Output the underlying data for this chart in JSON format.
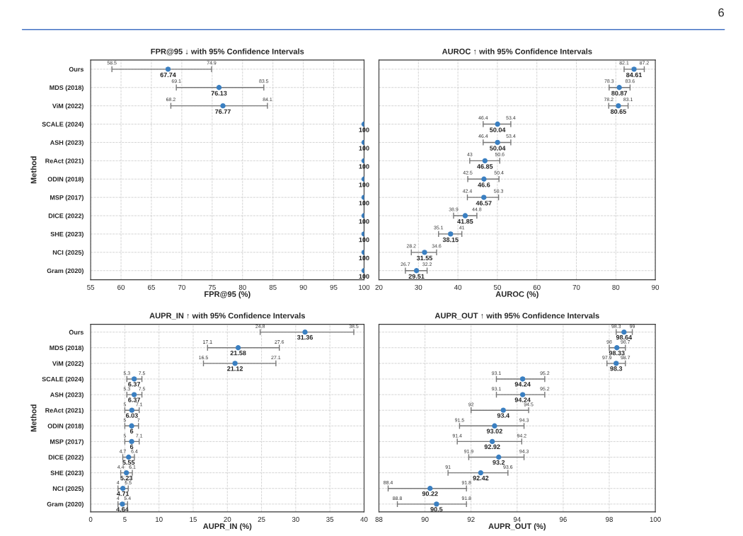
{
  "chart_data": [
    {
      "type": "scatter",
      "orientation": "horizontal",
      "title": "FPR@95 ↓ with 95% Confidence Intervals",
      "xlabel": "FPR@95 (%)",
      "ylabel": "Method",
      "categories": [
        "Ours",
        "MDS (2018)",
        "ViM (2022)",
        "SCALE (2024)",
        "ASH (2023)",
        "ReAct (2021)",
        "ODIN (2018)",
        "MSP (2017)",
        "DICE (2022)",
        "SHE (2023)",
        "NCI (2025)",
        "Gram (2020)"
      ],
      "values": [
        67.74,
        76.13,
        76.77,
        100,
        100,
        100,
        100,
        100,
        100,
        100,
        100,
        100
      ],
      "errors": [
        [
          58.5,
          74.9
        ],
        [
          69.1,
          83.5
        ],
        [
          68.2,
          84.1
        ],
        null,
        null,
        null,
        null,
        null,
        null,
        null,
        null,
        null
      ],
      "color": "#3a7fc1",
      "marker": "circle",
      "data_labels": true,
      "grid": true,
      "xlim": [
        55,
        100
      ],
      "xticks": [
        55,
        60,
        65,
        70,
        75,
        80,
        85,
        90,
        95,
        100
      ],
      "annotations": [
        "6",
        {
          "text": "58.5",
          "x": 58.5,
          "y": "Ours"
        },
        {
          "text": "74.9",
          "x": 74.9,
          "y": "Ours"
        },
        {
          "text": "69.1",
          "x": 69.1,
          "y": "MDS (2018)"
        },
        {
          "text": "83.5",
          "x": 83.5,
          "y": "MDS (2018)"
        },
        {
          "text": "68.2",
          "x": 68.2,
          "y": "ViM (2022)"
        },
        {
          "text": "84.1",
          "x": 84.1,
          "y": "ViM (2022)"
        }
      ]
    },
    {
      "type": "scatter",
      "orientation": "horizontal",
      "title": "AUROC ↑ with 95% Confidence Intervals",
      "xlabel": "AUROC (%)",
      "categories": [
        "Ours",
        "MDS (2018)",
        "ViM (2022)",
        "SCALE (2024)",
        "ASH (2023)",
        "ReAct (2021)",
        "ODIN (2018)",
        "MSP (2017)",
        "DICE (2022)",
        "SHE (2023)",
        "NCI (2025)",
        "Gram (2020)"
      ],
      "values": [
        84.61,
        80.87,
        80.65,
        50.04,
        50.04,
        46.85,
        46.6,
        46.57,
        41.85,
        38.15,
        31.55,
        29.51
      ],
      "errors": [
        [
          82.1,
          87.2
        ],
        [
          78.3,
          83.6
        ],
        [
          78.2,
          83.1
        ],
        [
          46.4,
          53.4
        ],
        [
          46.4,
          53.4
        ],
        [
          43,
          50.6
        ],
        [
          42.5,
          50.4
        ],
        [
          42.4,
          50.3
        ],
        [
          38.9,
          44.8
        ],
        [
          35.1,
          41
        ],
        [
          28.2,
          34.6
        ],
        [
          26.7,
          32.2
        ]
      ],
      "color": "#3a7fc1",
      "marker": "circle",
      "data_labels": true,
      "grid": true,
      "tick_labels": "x",
      "xlim": [
        20,
        90
      ],
      "xticks": [
        20,
        30,
        40,
        50,
        60,
        70,
        80,
        90
      ],
      "annotations": [
        {
          "text": "82.1",
          "x": 82.1,
          "y": "Ours"
        },
        {
          "text": "87.2",
          "x": 87.2,
          "y": "Ours"
        },
        {
          "text": "78.3",
          "x": 78.3,
          "y": "MDS (2018)"
        },
        {
          "text": "83.6",
          "x": 83.6,
          "y": "MDS (2018)"
        },
        {
          "text": "78.2",
          "x": 78.2,
          "y": "ViM (2022)"
        },
        {
          "text": "83.1",
          "x": 83.1,
          "y": "ViM (2022)"
        },
        {
          "text": "46.4",
          "x": 46.4,
          "y": "SCALE (2024)"
        },
        {
          "text": "53.4",
          "x": 53.4,
          "y": "SCALE (2024)"
        },
        {
          "text": "46.4",
          "x": 46.4,
          "y": "ASH (2023)"
        },
        {
          "text": "53.4",
          "x": 53.4,
          "y": "ASH (2023)"
        },
        {
          "text": "43",
          "x": 43,
          "y": "ReAct (2021)"
        },
        {
          "text": "50.6",
          "x": 50.6,
          "y": "ReAct (2021)"
        },
        {
          "text": "42.5",
          "x": 42.5,
          "y": "ODIN (2018)"
        },
        {
          "text": "50.4",
          "x": 50.4,
          "y": "ODIN (2018)"
        },
        {
          "text": "42.4",
          "x": 42.4,
          "y": "MSP (2017)"
        },
        {
          "text": "50.3",
          "x": 50.3,
          "y": "MSP (2017)"
        },
        {
          "text": "38.9",
          "x": 38.9,
          "y": "DICE (2022)"
        },
        {
          "text": "44.8",
          "x": 44.8,
          "y": "DICE (2022)"
        },
        {
          "text": "35.1",
          "x": 35.1,
          "y": "SHE (2023)"
        },
        {
          "text": "41",
          "x": 41,
          "y": "SHE (2023)"
        },
        {
          "text": "28.2",
          "x": 28.2,
          "y": "NCI (2025)"
        },
        {
          "text": "34.6",
          "x": 34.6,
          "y": "NCI (2025)"
        },
        {
          "text": "26.7",
          "x": 26.7,
          "y": "Gram (2020)"
        },
        {
          "text": "32.2",
          "x": 32.2,
          "y": "Gram (2020)"
        }
      ]
    },
    {
      "type": "scatter",
      "orientation": "horizontal",
      "title": "AUPR_IN ↑ with 95% Confidence Intervals",
      "xlabel": "AUPR_IN (%)",
      "ylabel": "Method",
      "categories": [
        "Ours",
        "MDS (2018)",
        "ViM (2022)",
        "SCALE (2024)",
        "ASH (2023)",
        "ReAct (2021)",
        "ODIN (2018)",
        "MSP (2017)",
        "DICE (2022)",
        "SHE (2023)",
        "NCI (2025)",
        "Gram (2020)"
      ],
      "values": [
        31.36,
        21.58,
        21.12,
        6.37,
        6.37,
        6.03,
        6,
        6,
        5.55,
        5.23,
        4.71,
        4.64
      ],
      "errors": [
        [
          24.8,
          38.5
        ],
        [
          17.1,
          27.6
        ],
        [
          16.5,
          27.1
        ],
        [
          5.3,
          7.5
        ],
        [
          5.3,
          7.5
        ],
        [
          5,
          7.1
        ],
        [
          5,
          7
        ],
        [
          5,
          7.1
        ],
        [
          4.7,
          6.4
        ],
        [
          4.4,
          6.1
        ],
        [
          4,
          5.5
        ],
        [
          4,
          5.4
        ]
      ],
      "color": "#3a7fc1",
      "marker": "circle",
      "data_labels": true,
      "grid": true,
      "xlim": [
        0,
        40
      ],
      "xticks": [
        0,
        5,
        10,
        15,
        20,
        25,
        30,
        35,
        40
      ],
      "annotations": [
        {
          "text": "24.8",
          "x": 24.8,
          "y": "Ours"
        },
        {
          "text": "38.5",
          "x": 38.5,
          "y": "Ours"
        },
        {
          "text": "17.1",
          "x": 17.1,
          "y": "MDS (2018)"
        },
        {
          "text": "27.6",
          "x": 27.6,
          "y": "MDS (2018)"
        },
        {
          "text": "16.5",
          "x": 16.5,
          "y": "ViM (2022)"
        },
        {
          "text": "27.1",
          "x": 27.1,
          "y": "ViM (2022)"
        },
        {
          "text": "5.3",
          "x": 5.3,
          "y": "SCALE (2024)"
        },
        {
          "text": "7.5",
          "x": 7.5,
          "y": "SCALE (2024)"
        },
        {
          "text": "5.3",
          "x": 5.3,
          "y": "ASH (2023)"
        },
        {
          "text": "7.5",
          "x": 7.5,
          "y": "ASH (2023)"
        },
        {
          "text": "5",
          "x": 5,
          "y": "ReAct (2021)"
        },
        {
          "text": "7.1",
          "x": 7.1,
          "y": "ReAct (2021)"
        },
        {
          "text": "5",
          "x": 5,
          "y": "ODIN (2018)"
        },
        {
          "text": "7",
          "x": 7,
          "y": "ODIN (2018)"
        },
        {
          "text": "5",
          "x": 5,
          "y": "MSP (2017)"
        },
        {
          "text": "7.1",
          "x": 7.1,
          "y": "MSP (2017)"
        },
        {
          "text": "4.7",
          "x": 4.7,
          "y": "DICE (2022)"
        },
        {
          "text": "6.4",
          "x": 6.4,
          "y": "DICE (2022)"
        },
        {
          "text": "4.4",
          "x": 4.4,
          "y": "SHE (2023)"
        },
        {
          "text": "6.1",
          "x": 6.1,
          "y": "SHE (2023)"
        },
        {
          "text": "4",
          "x": 4,
          "y": "NCI (2025)"
        },
        {
          "text": "5.5",
          "x": 5.5,
          "y": "NCI (2025)"
        },
        {
          "text": "4",
          "x": 4,
          "y": "Gram (2020)"
        },
        {
          "text": "5.4",
          "x": 5.4,
          "y": "Gram (2020)"
        }
      ]
    },
    {
      "type": "scatter",
      "orientation": "horizontal",
      "title": "AUPR_OUT ↑ with 95% Confidence Intervals",
      "xlabel": "AUPR_OUT (%)",
      "categories": [
        "Ours",
        "MDS (2018)",
        "ViM (2022)",
        "SCALE (2024)",
        "ASH (2023)",
        "ReAct (2021)",
        "ODIN (2018)",
        "MSP (2017)",
        "DICE (2022)",
        "SHE (2023)",
        "NCI (2025)",
        "Gram (2020)"
      ],
      "values": [
        98.64,
        98.33,
        98.3,
        94.24,
        94.24,
        93.4,
        93.02,
        92.92,
        93.2,
        92.42,
        90.22,
        90.5
      ],
      "errors": [
        [
          98.3,
          99
        ],
        [
          98,
          98.7
        ],
        [
          97.9,
          98.7
        ],
        [
          93.1,
          95.2
        ],
        [
          93.1,
          95.2
        ],
        [
          92,
          94.5
        ],
        [
          91.5,
          94.3
        ],
        [
          91.4,
          94.2
        ],
        [
          91.9,
          94.3
        ],
        [
          91,
          93.6
        ],
        [
          88.4,
          91.8
        ],
        [
          88.8,
          91.8
        ]
      ],
      "color": "#3a7fc1",
      "marker": "circle",
      "data_labels": true,
      "grid": true,
      "tick_labels": "x",
      "xlim": [
        88,
        100
      ],
      "xticks": [
        88,
        90,
        92,
        94,
        96,
        98,
        100
      ],
      "annotations": [
        {
          "text": "98.3",
          "x": 98.3,
          "y": "Ours"
        },
        {
          "text": "99",
          "x": 99,
          "y": "Ours"
        },
        {
          "text": "98",
          "x": 98,
          "y": "MDS (2018)"
        },
        {
          "text": "98.7",
          "x": 98.7,
          "y": "MDS (2018)"
        },
        {
          "text": "97.9",
          "x": 97.9,
          "y": "ViM (2022)"
        },
        {
          "text": "98.7",
          "x": 98.7,
          "y": "ViM (2022)"
        },
        {
          "text": "93.1",
          "x": 93.1,
          "y": "SCALE (2024)"
        },
        {
          "text": "95.2",
          "x": 95.2,
          "y": "SCALE (2024)"
        },
        {
          "text": "93.1",
          "x": 93.1,
          "y": "ASH (2023)"
        },
        {
          "text": "95.2",
          "x": 95.2,
          "y": "ASH (2023)"
        },
        {
          "text": "92",
          "x": 92,
          "y": "ReAct (2021)"
        },
        {
          "text": "94.5",
          "x": 94.5,
          "y": "ReAct (2021)"
        },
        {
          "text": "91.5",
          "x": 91.5,
          "y": "ODIN (2018)"
        },
        {
          "text": "94.3",
          "x": 94.3,
          "y": "ODIN (2018)"
        },
        {
          "text": "91.4",
          "x": 91.4,
          "y": "MSP (2017)"
        },
        {
          "text": "94.2",
          "x": 94.2,
          "y": "MSP (2017)"
        },
        {
          "text": "91.9",
          "x": 91.9,
          "y": "DICE (2022)"
        },
        {
          "text": "94.3",
          "x": 94.3,
          "y": "DICE (2022)"
        },
        {
          "text": "91",
          "x": 91,
          "y": "SHE (2023)"
        },
        {
          "text": "93.6",
          "x": 93.6,
          "y": "SHE (2023)"
        },
        {
          "text": "88.4",
          "x": 88.4,
          "y": "NCI (2025)"
        },
        {
          "text": "91.8",
          "x": 91.8,
          "y": "NCI (2025)"
        },
        {
          "text": "88.8",
          "x": 88.8,
          "y": "Gram (2020)"
        },
        {
          "text": "91.8",
          "x": 91.8,
          "y": "Gram (2020)"
        }
      ]
    }
  ]
}
